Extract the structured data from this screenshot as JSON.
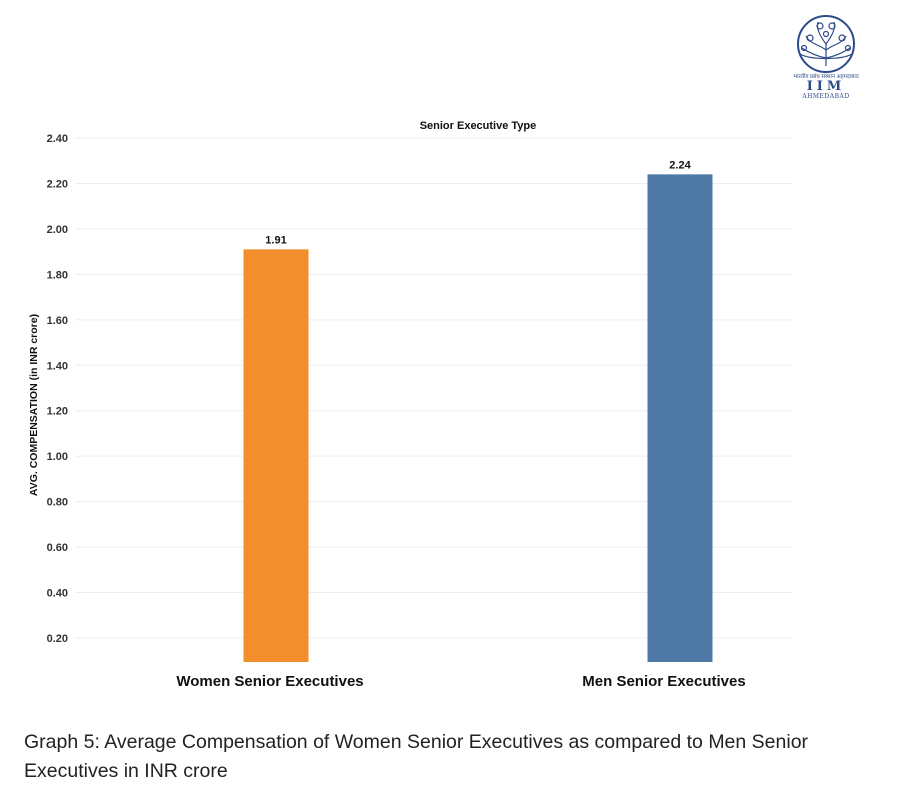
{
  "logo": {
    "hindi_text": "भारतीय प्रबंध संस्थान अहमदाबाद",
    "name": "IIM",
    "city": "AHMEDABAD"
  },
  "chart_data": {
    "type": "bar",
    "title": "Senior Executive Type",
    "categories": [
      "Women Senior Executives",
      "Men Senior Executives"
    ],
    "series": [
      {
        "values": [
          1.91,
          2.24
        ]
      }
    ],
    "data_labels": [
      "1.91",
      "2.24"
    ],
    "colors": [
      "#f28e2b",
      "#4e79a7"
    ],
    "ylabel": "AVG. COMPENSATION (in INR crore)",
    "xlabel": "",
    "ylim": [
      0,
      2.4
    ],
    "yticks": [
      0.2,
      0.4,
      0.6,
      0.8,
      1.0,
      1.2,
      1.4,
      1.6,
      1.8,
      2.0,
      2.2,
      2.4
    ],
    "ytick_labels": [
      "0.20",
      "0.40",
      "0.60",
      "0.80",
      "1.00",
      "1.20",
      "1.40",
      "1.60",
      "1.80",
      "2.00",
      "2.20",
      "2.40"
    ],
    "grid": true,
    "legend": "none"
  },
  "caption": "Graph 5: Average Compensation of Women Senior Executives as compared to Men Senior Executives in INR crore"
}
